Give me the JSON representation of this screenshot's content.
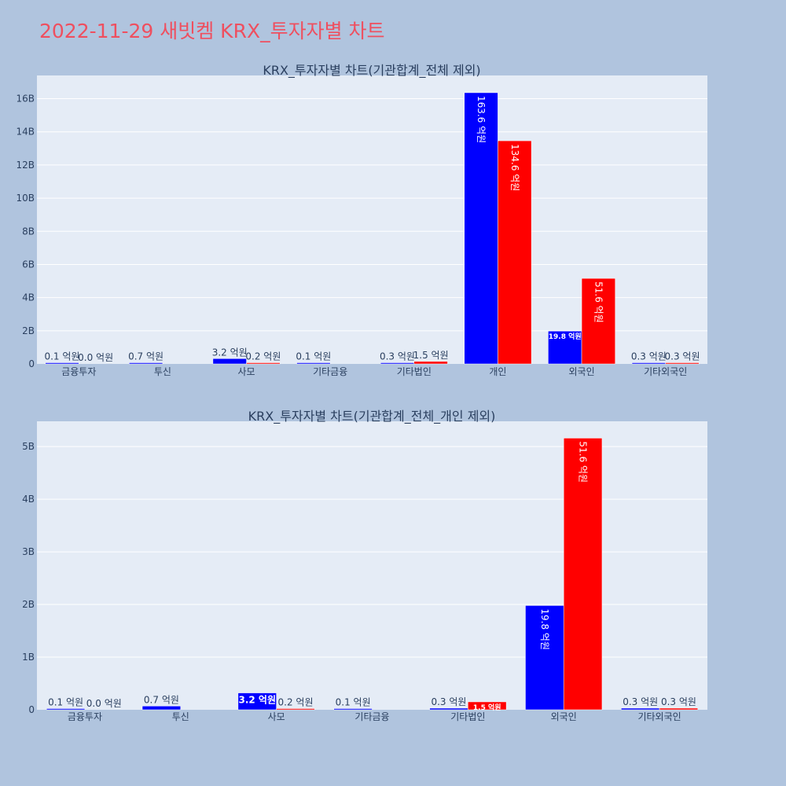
{
  "page": {
    "title": "2022-11-29 새빗켐 KRX_투자자별 차트"
  },
  "colors": {
    "background": "#b0c4de",
    "plot_background": "#e5ecf6",
    "gridline": "#ffffff",
    "title": "#ef4f5f",
    "text": "#2a3f5f",
    "buy_series": "#0000ff",
    "sell_series": "#ff0000"
  },
  "chart_data": [
    {
      "type": "bar",
      "title": "KRX_투자자별 차트(기관합계_전체 제외)",
      "xlabel": "",
      "ylabel": "",
      "categories": [
        "금융투자",
        "투신",
        "사모",
        "기타금융",
        "기타법인",
        "개인",
        "외국인",
        "기타외국인"
      ],
      "ylim": [
        0,
        17400000000
      ],
      "yticks": [
        0,
        2000000000,
        4000000000,
        6000000000,
        8000000000,
        10000000000,
        12000000000,
        14000000000,
        16000000000
      ],
      "ytick_labels": [
        "0",
        "2B",
        "4B",
        "6B",
        "8B",
        "10B",
        "12B",
        "14B",
        "16B"
      ],
      "grid": true,
      "series": [
        {
          "color": "#0000ff",
          "values": [
            10000000,
            70000000,
            320000000,
            10000000,
            30000000,
            16360000000,
            1980000000,
            30000000
          ],
          "labels": [
            "0.1 억원",
            "0.7 억원",
            "3.2 억원",
            "0.1 억원",
            "0.3 억원",
            "163.6 억원",
            "19.8 억원",
            "0.3 억원"
          ]
        },
        {
          "color": "#ff0000",
          "values": [
            0,
            0,
            20000000,
            0,
            150000000,
            13460000000,
            5160000000,
            30000000
          ],
          "labels": [
            "0.0 억원",
            "",
            "0.2 억원",
            "",
            "1.5 억원",
            "134.6 억원",
            "51.6 억원",
            "0.3 억원"
          ]
        }
      ]
    },
    {
      "type": "bar",
      "title": "KRX_투자자별 차트(기관합계_전체_개인 제외)",
      "xlabel": "",
      "ylabel": "",
      "categories": [
        "금융투자",
        "투신",
        "사모",
        "기타금융",
        "기타법인",
        "외국인",
        "기타외국인"
      ],
      "ylim": [
        0,
        5480000000
      ],
      "yticks": [
        0,
        1000000000,
        2000000000,
        3000000000,
        4000000000,
        5000000000
      ],
      "ytick_labels": [
        "0",
        "1B",
        "2B",
        "3B",
        "4B",
        "5B"
      ],
      "grid": true,
      "series": [
        {
          "color": "#0000ff",
          "values": [
            10000000,
            70000000,
            320000000,
            10000000,
            30000000,
            1980000000,
            30000000
          ],
          "labels": [
            "0.1 억원",
            "0.7 억원",
            "3.2 억원",
            "0.1 억원",
            "0.3 억원",
            "19.8 억원",
            "0.3 억원"
          ]
        },
        {
          "color": "#ff0000",
          "values": [
            0,
            0,
            20000000,
            0,
            150000000,
            5160000000,
            30000000
          ],
          "labels": [
            "0.0 억원",
            "",
            "0.2 억원",
            "",
            "1.5 억원",
            "51.6 억원",
            "0.3 억원"
          ]
        }
      ]
    }
  ]
}
